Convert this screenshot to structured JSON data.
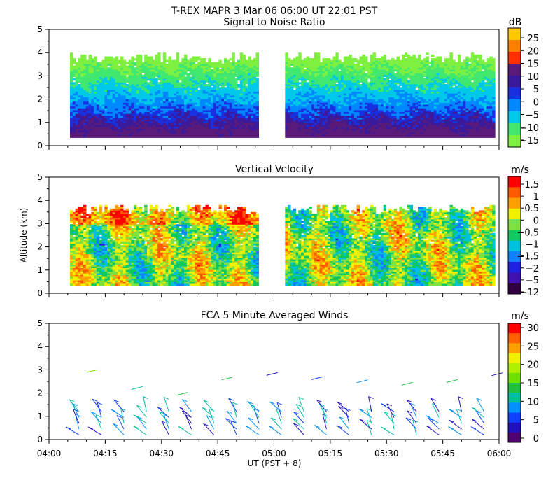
{
  "figure": {
    "title_line1": "T-REX   MAPR   3 Mar 06   06:00 UT   22:01   PST",
    "ylabel": "Altitude (km)",
    "xlabel": "UT  (PST + 8)",
    "x_ticks": [
      "04:00",
      "04:15",
      "04:30",
      "04:45",
      "05:00",
      "05:15",
      "05:30",
      "05:45",
      "06:00"
    ],
    "y_ticks": [
      "0",
      "1",
      "2",
      "3",
      "4",
      "5"
    ]
  },
  "chart_data": [
    {
      "type": "heatmap",
      "title": "Signal to Noise Ratio",
      "colorbar_unit": "dB",
      "colorbar_labels": [
        "25",
        "20",
        "15",
        "10",
        "5",
        "0",
        "−5",
        "−10",
        "−15"
      ],
      "colorbar_colors": [
        "#ffc800",
        "#ff8000",
        "#ff3000",
        "#5a1a7a",
        "#3a1a9a",
        "#1830e0",
        "#0088ff",
        "#00c8e8",
        "#40e870",
        "#80f040"
      ],
      "xlim_minutes": [
        0,
        120
      ],
      "ylim_km": [
        0,
        5
      ],
      "data_gap_minutes": [
        57,
        59
      ],
      "data_top_km": 4.0,
      "data_bottom_km": 0.35
    },
    {
      "type": "heatmap",
      "title": "Vertical Velocity",
      "colorbar_unit": "m/s",
      "colorbar_labels": [
        "1.5",
        "1",
        "0.5",
        "0",
        "−0.5",
        "−1",
        "−1.5",
        "−2",
        "−5",
        "−12"
      ],
      "colorbar_colors": [
        "#ff0000",
        "#ff5a00",
        "#ffa000",
        "#f0f000",
        "#80e040",
        "#10c860",
        "#00c0e0",
        "#1080ff",
        "#2020e0",
        "#4010b0",
        "#300040"
      ],
      "xlim_minutes": [
        0,
        120
      ],
      "ylim_km": [
        0,
        5
      ],
      "data_gap_minutes": [
        57,
        59
      ],
      "data_top_km": 3.8,
      "data_bottom_km": 0.35
    },
    {
      "type": "scatter",
      "title": "FCA 5 Minute Averaged Winds",
      "colorbar_unit": "m/s",
      "colorbar_labels": [
        "30",
        "25",
        "20",
        "15",
        "10",
        "5",
        "0"
      ],
      "colorbar_colors": [
        "#ff0000",
        "#ff6000",
        "#ffa000",
        "#f0f000",
        "#b0f000",
        "#70e000",
        "#20c040",
        "#00c0a0",
        "#0090ff",
        "#1040ff",
        "#2010c0",
        "#500070"
      ],
      "xlim_minutes": [
        0,
        120
      ],
      "ylim_km": [
        0,
        5
      ],
      "barb_times_minutes": [
        8,
        14,
        20,
        26,
        32,
        38,
        44,
        50,
        56,
        62,
        68,
        74,
        80,
        86,
        92,
        98,
        104,
        110,
        116
      ],
      "barb_heights_km": [
        0.2,
        0.45,
        0.7,
        0.95,
        1.2
      ]
    }
  ]
}
